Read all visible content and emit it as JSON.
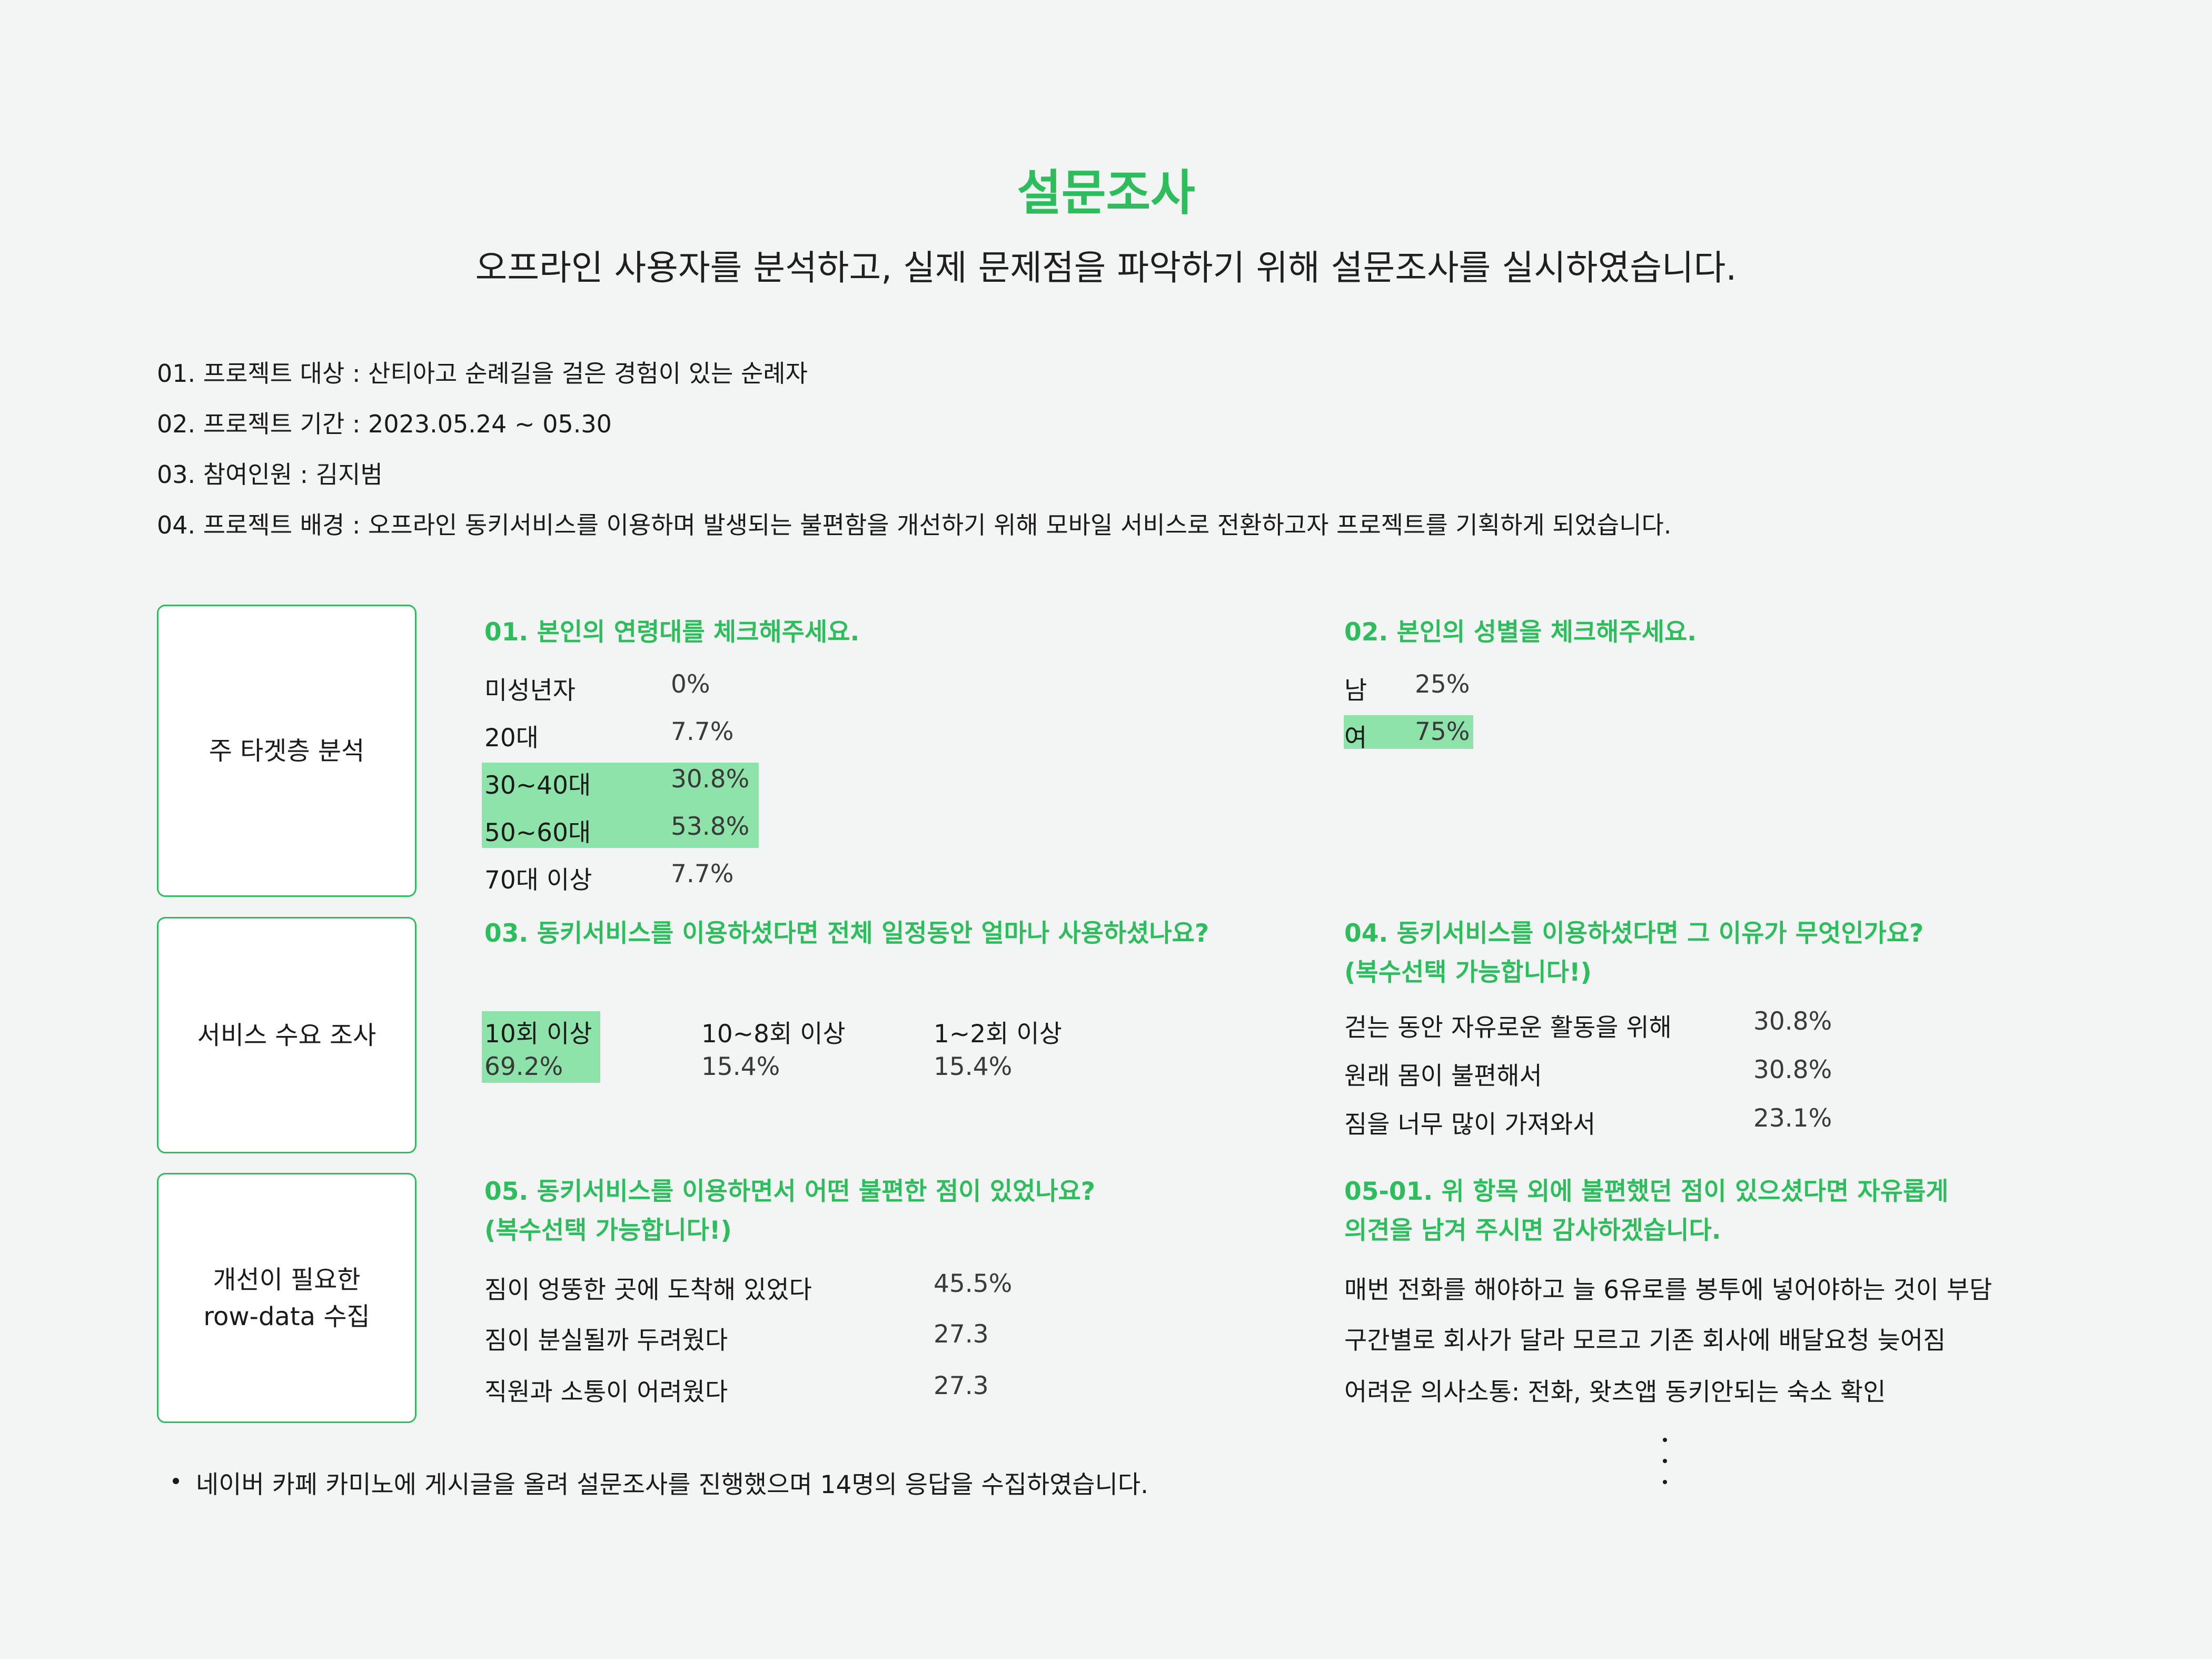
{
  "title": "설문조사",
  "subtitle": "오프라인 사용자를 분석하고, 실제 문제점을 파악하기 위해 설문조사를 실시하였습니다.",
  "info": [
    "01. 프로젝트 대상 : 산티아고 순례길을 걸은 경험이 있는 순례자",
    "02. 프로젝트 기간 : 2023.05.24 ~ 05.30",
    "03. 참여인원 : 김지범",
    "04. 프로젝트 배경 : 오프라인 동키서비스를 이용하며 발생되는 불편함을 개선하기 위해 모바일 서비스로 전환하고자 프로젝트를 기획하게 되었습니다."
  ],
  "sections": {
    "target": "주 타겟층 분석",
    "demand": "서비스 수요 조사",
    "improve_line1": "개선이 필요한",
    "improve_line2": "row-data 수집"
  },
  "q1": {
    "question": "01. 본인의 연령대를 체크해주세요.",
    "rows": [
      {
        "label": "미성년자",
        "value": "0%",
        "highlight": false
      },
      {
        "label": "20대",
        "value": "7.7%",
        "highlight": false
      },
      {
        "label": "30~40대",
        "value": "30.8%",
        "highlight": true
      },
      {
        "label": "50~60대",
        "value": "53.8%",
        "highlight": true
      },
      {
        "label": "70대 이상",
        "value": "7.7%",
        "highlight": false
      }
    ]
  },
  "q2": {
    "question": "02. 본인의 성별을 체크해주세요.",
    "rows": [
      {
        "label": "남",
        "value": "25%",
        "highlight": false
      },
      {
        "label": "여",
        "value": "75%",
        "highlight": true
      }
    ]
  },
  "q3": {
    "question": "03. 동키서비스를 이용하셨다면 전체 일정동안 얼마나 사용하셨나요?",
    "cols": [
      {
        "label": "10회 이상",
        "value": "69.2%",
        "highlight": true
      },
      {
        "label": "10~8회 이상",
        "value": "15.4%",
        "highlight": false
      },
      {
        "label": "1~2회 이상",
        "value": "15.4%",
        "highlight": false
      }
    ]
  },
  "q4": {
    "question_line1": "04. 동키서비스를 이용하셨다면 그 이유가 무엇인가요?",
    "question_line2": "(복수선택 가능합니다!)",
    "rows": [
      {
        "label": "걷는 동안 자유로운 활동을 위해",
        "value": "30.8%"
      },
      {
        "label": "원래 몸이 불편해서",
        "value": "30.8%"
      },
      {
        "label": "짐을 너무 많이 가져와서",
        "value": "23.1%"
      }
    ]
  },
  "q5": {
    "question_line1": "05. 동키서비스를 이용하면서 어떤 불편한 점이 있었나요?",
    "question_line2": "(복수선택 가능합니다!)",
    "rows": [
      {
        "label": "짐이 엉뚱한 곳에 도착해 있었다",
        "value": "45.5%"
      },
      {
        "label": "짐이 분실될까 두려웠다",
        "value": "27.3"
      },
      {
        "label": "직원과 소통이 어려웠다",
        "value": "27.3"
      }
    ]
  },
  "q5_1": {
    "question_line1": "05-01. 위 항목 외에 불편했던 점이 있으셨다면 자유롭게",
    "question_line2": "의견을 남겨 주시면 감사하겠습니다.",
    "answers": [
      "매번 전화를 해야하고 늘 6유로를 봉투에 넣어야하는 것이 부담",
      "구간별로 회사가 달라 모르고 기존 회사에 배달요청 늦어짐",
      "어려운 의사소통: 전화, 왓츠앱 동키안되는 숙소 확인"
    ]
  },
  "footnote": "네이버 카페 카미노에 게시글을 올려 설문조사를 진행했으며 14명의 응답을 수집하였습니다.",
  "colors": {
    "accent": "#2ebd5c",
    "highlight": "#8ee3aa",
    "background": "#f2f5f3"
  }
}
